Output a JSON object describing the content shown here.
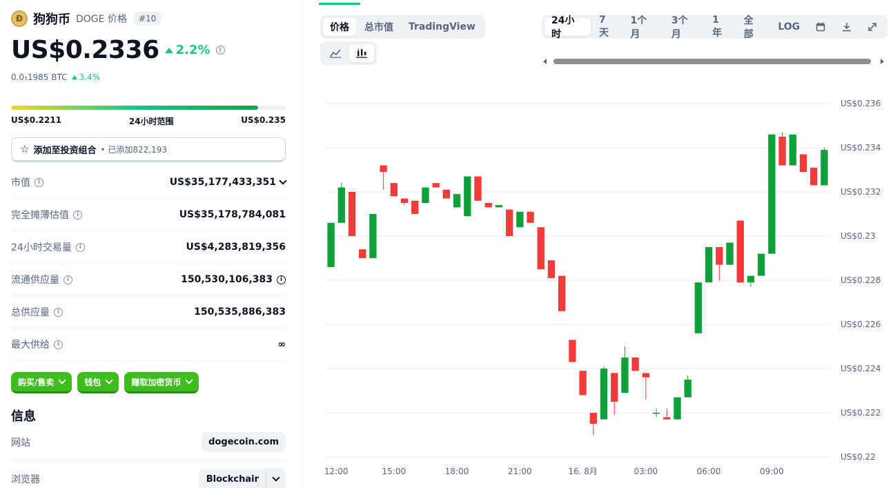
{
  "coin": {
    "name": "狗狗币",
    "symbol_label": "DOGE 价格",
    "rank": "#10",
    "price": "US$0.2336",
    "change_24h": "2.2%",
    "btc_price": "0.0₅1985 BTC",
    "btc_change": "3.4%"
  },
  "range": {
    "low": "US$0.2211",
    "label": "24小时范围",
    "high": "US$0.235",
    "position_fraction": 0.9
  },
  "portfolio": {
    "label": "添加至投资组合",
    "added": "• 已添加822,193"
  },
  "stats": [
    {
      "label": "市值",
      "value": "US$35,177,433,351"
    },
    {
      "label": "完全摊薄估值",
      "value": "US$35,178,784,081"
    },
    {
      "label": "24小时交易量",
      "value": "US$4,283,819,356"
    },
    {
      "label": "流通供应量",
      "value": "150,530,106,383"
    },
    {
      "label": "总供应量",
      "value": "150,535,886,383"
    },
    {
      "label": "最大供给",
      "value": "∞"
    }
  ],
  "actions": [
    "购买/售卖",
    "钱包",
    "赚取加密货币"
  ],
  "info": {
    "title": "信息",
    "website_label": "网站",
    "website_value": "dogecoin.com",
    "explorer_label": "浏览器",
    "explorer_value": "Blockchair"
  },
  "chart_tabs": [
    "价格",
    "总市值",
    "TradingView"
  ],
  "time_ranges": [
    "24小时",
    "7天",
    "1个月",
    "3个月",
    "1年",
    "全部",
    "LOG"
  ],
  "icons": [
    "line-chart-icon",
    "candle-chart-icon",
    "calendar-icon",
    "download-icon",
    "expand-icon",
    "info-icon",
    "star-icon",
    "chevron-down-icon"
  ],
  "colors": {
    "up": "#16c784",
    "down": "#ea3943",
    "bull_candle": "#0fa03c",
    "bear_candle": "#f23c3c"
  },
  "chart_data": {
    "type": "candlestick",
    "y_axis_labels": [
      "US$0.236",
      "US$0.234",
      "US$0.232",
      "US$0.23",
      "US$0.228",
      "US$0.226",
      "US$0.224",
      "US$0.222",
      "US$0.22"
    ],
    "y_ticks": [
      0.236,
      0.234,
      0.232,
      0.23,
      0.228,
      0.226,
      0.224,
      0.222,
      0.22
    ],
    "ylim": [
      0.22,
      0.236
    ],
    "x_tick_labels": [
      "12:00",
      "15:00",
      "18:00",
      "21:00",
      "16. 8月",
      "03:00",
      "06:00",
      "09:00"
    ],
    "x_tick_index": [
      0.5,
      6,
      12,
      18,
      24,
      30,
      36,
      42
    ],
    "grid": true,
    "candles": [
      [
        0.2286,
        0.2306,
        0.2306,
        0.2286
      ],
      [
        0.2306,
        0.2322,
        0.2324,
        0.2306
      ],
      [
        0.232,
        0.23,
        0.232,
        0.23
      ],
      [
        0.2294,
        0.229,
        0.2294,
        0.229
      ],
      [
        0.229,
        0.231,
        0.231,
        0.229
      ],
      [
        0.2332,
        0.2329,
        0.2332,
        0.2321
      ],
      [
        0.2324,
        0.2318,
        0.2324,
        0.2318
      ],
      [
        0.2317,
        0.2315,
        0.2317,
        0.2314
      ],
      [
        0.2316,
        0.231,
        0.2316,
        0.231
      ],
      [
        0.2315,
        0.2322,
        0.2322,
        0.2315
      ],
      [
        0.2324,
        0.2322,
        0.2324,
        0.2322
      ],
      [
        0.2321,
        0.2317,
        0.2321,
        0.2317
      ],
      [
        0.2313,
        0.2319,
        0.2319,
        0.2313
      ],
      [
        0.2309,
        0.2327,
        0.2327,
        0.2309
      ],
      [
        0.2327,
        0.2316,
        0.2327,
        0.2316
      ],
      [
        0.2315,
        0.2313,
        0.2315,
        0.2313
      ],
      [
        0.2313,
        0.2314,
        0.2314,
        0.2313
      ],
      [
        0.2312,
        0.23,
        0.2312,
        0.23
      ],
      [
        0.2304,
        0.2311,
        0.2311,
        0.2304
      ],
      [
        0.2311,
        0.2306,
        0.2311,
        0.2306
      ],
      [
        0.2304,
        0.2285,
        0.2304,
        0.2285
      ],
      [
        0.2289,
        0.2281,
        0.2289,
        0.2281
      ],
      [
        0.2282,
        0.2266,
        0.2282,
        0.2266
      ],
      [
        0.2253,
        0.2243,
        0.2253,
        0.2243
      ],
      [
        0.2239,
        0.2228,
        0.2239,
        0.2228
      ],
      [
        0.222,
        0.2215,
        0.222,
        0.221
      ],
      [
        0.2217,
        0.224,
        0.2241,
        0.2217
      ],
      [
        0.2238,
        0.2225,
        0.2238,
        0.2219
      ],
      [
        0.2229,
        0.2245,
        0.225,
        0.2229
      ],
      [
        0.2245,
        0.2239,
        0.2245,
        0.2239
      ],
      [
        0.2238,
        0.2236,
        0.2238,
        0.2226
      ],
      [
        0.222,
        0.222,
        0.2222,
        0.2218
      ],
      [
        0.2218,
        0.2217,
        0.2222,
        0.2217
      ],
      [
        0.2217,
        0.2227,
        0.2227,
        0.2217
      ],
      [
        0.2227,
        0.2235,
        0.2237,
        0.2227
      ],
      [
        0.2256,
        0.2279,
        0.2279,
        0.2256
      ],
      [
        0.2279,
        0.2295,
        0.2295,
        0.2279
      ],
      [
        0.2295,
        0.2287,
        0.2295,
        0.228
      ],
      [
        0.2287,
        0.2297,
        0.2297,
        0.2287
      ],
      [
        0.2307,
        0.2279,
        0.2307,
        0.2279
      ],
      [
        0.2279,
        0.2282,
        0.2282,
        0.2277
      ],
      [
        0.2282,
        0.2292,
        0.2292,
        0.2282
      ],
      [
        0.2292,
        0.2346,
        0.2346,
        0.2292
      ],
      [
        0.2345,
        0.2332,
        0.2347,
        0.2332
      ],
      [
        0.2332,
        0.2346,
        0.2346,
        0.2332
      ],
      [
        0.2337,
        0.2329,
        0.2337,
        0.2329
      ],
      [
        0.2331,
        0.2323,
        0.2331,
        0.2323
      ],
      [
        0.2323,
        0.2339,
        0.234,
        0.2323
      ]
    ]
  }
}
